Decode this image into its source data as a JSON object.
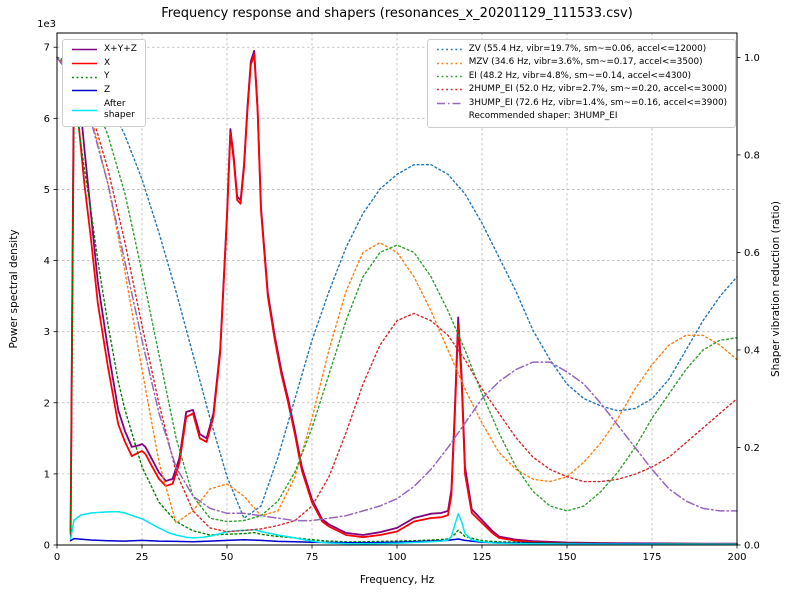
{
  "chart_data": {
    "type": "line",
    "title": "Frequency response and shapers (resonances_x_20201129_111533.csv)",
    "xlabel": "Frequency, Hz",
    "x_range": [
      0,
      200
    ],
    "x_ticks": [
      0,
      25,
      50,
      75,
      100,
      125,
      150,
      175,
      200
    ],
    "grid": true,
    "left_axis": {
      "label": "Power spectral density",
      "range": [
        0,
        7200
      ],
      "ticks": [
        0,
        1000,
        2000,
        3000,
        4000,
        5000,
        6000,
        7000
      ],
      "tick_labels": [
        "0",
        "1",
        "2",
        "3",
        "4",
        "5",
        "6",
        "7"
      ],
      "multiplier": "1e3"
    },
    "right_axis": {
      "label": "Shaper vibration reduction (ratio)",
      "range": [
        0,
        1.05
      ],
      "ticks": [
        0,
        0.2,
        0.4,
        0.6,
        0.8,
        1.0
      ],
      "tick_labels": [
        "0.0",
        "0.2",
        "0.4",
        "0.6",
        "0.8",
        "1.0"
      ]
    },
    "psd_series": [
      {
        "name": "X+Y+Z",
        "legend": "X+Y+Z",
        "color": "#800080",
        "style": "solid",
        "width": 1.8,
        "x": [
          4,
          5,
          6,
          8,
          10,
          12,
          15,
          18,
          20,
          22,
          24,
          25,
          26,
          28,
          30,
          32,
          34,
          36,
          38,
          40,
          42,
          44,
          46,
          48,
          50,
          51,
          52,
          53,
          54,
          55,
          56,
          57,
          58,
          59,
          60,
          62,
          64,
          66,
          68,
          70,
          72,
          75,
          78,
          80,
          85,
          90,
          95,
          100,
          105,
          110,
          113,
          115,
          116,
          117,
          118,
          119,
          120,
          122,
          125,
          128,
          130,
          135,
          140,
          150,
          160,
          170,
          180,
          190,
          200
        ],
        "y": [
          200,
          6950,
          6600,
          5600,
          4650,
          3700,
          2750,
          1900,
          1600,
          1380,
          1400,
          1420,
          1380,
          1200,
          1020,
          900,
          930,
          1220,
          1870,
          1900,
          1560,
          1500,
          1850,
          2750,
          4650,
          5850,
          5450,
          4900,
          4850,
          5350,
          6150,
          6800,
          6950,
          6150,
          4750,
          3550,
          2950,
          2450,
          2050,
          1600,
          1100,
          640,
          360,
          290,
          170,
          140,
          180,
          240,
          380,
          440,
          450,
          480,
          780,
          1900,
          3200,
          2400,
          1100,
          500,
          350,
          200,
          120,
          75,
          55,
          35,
          28,
          24,
          22,
          20,
          20
        ]
      },
      {
        "name": "X",
        "legend": "X",
        "color": "#ff0000",
        "style": "solid",
        "width": 1.8,
        "x": [
          4,
          5,
          6,
          8,
          10,
          12,
          15,
          18,
          20,
          22,
          24,
          25,
          26,
          28,
          30,
          32,
          34,
          36,
          38,
          40,
          42,
          44,
          46,
          48,
          50,
          51,
          52,
          53,
          54,
          55,
          56,
          57,
          58,
          59,
          60,
          62,
          64,
          66,
          68,
          70,
          72,
          75,
          78,
          80,
          85,
          90,
          95,
          100,
          105,
          110,
          113,
          115,
          116,
          117,
          118,
          119,
          120,
          122,
          125,
          128,
          130,
          135,
          140,
          150,
          160,
          170,
          180,
          190,
          200
        ],
        "y": [
          150,
          6500,
          6100,
          5100,
          4300,
          3400,
          2500,
          1700,
          1450,
          1250,
          1300,
          1320,
          1280,
          1100,
          930,
          830,
          860,
          1150,
          1800,
          1850,
          1500,
          1450,
          1800,
          2700,
          4600,
          5800,
          5400,
          4850,
          4800,
          5300,
          6100,
          6750,
          6900,
          6100,
          4700,
          3500,
          2900,
          2400,
          2000,
          1550,
          1050,
          600,
          330,
          260,
          140,
          110,
          140,
          190,
          330,
          380,
          390,
          420,
          700,
          1800,
          3100,
          2300,
          1000,
          450,
          310,
          170,
          100,
          60,
          40,
          25,
          18,
          14,
          12,
          10,
          10
        ]
      },
      {
        "name": "Y",
        "legend": "Y",
        "color": "#008000",
        "style": "dotted",
        "width": 1.4,
        "x": [
          4,
          5,
          6,
          8,
          10,
          12,
          15,
          18,
          20,
          25,
          30,
          35,
          40,
          45,
          50,
          55,
          58,
          60,
          65,
          70,
          75,
          80,
          85,
          90,
          95,
          100,
          105,
          110,
          115,
          117,
          118,
          120,
          125,
          130,
          140,
          150,
          160,
          170,
          180,
          190,
          200
        ],
        "y": [
          120,
          6300,
          6000,
          5300,
          4700,
          4000,
          3100,
          2300,
          1900,
          1100,
          600,
          330,
          200,
          140,
          150,
          160,
          175,
          150,
          120,
          100,
          75,
          55,
          45,
          45,
          50,
          55,
          60,
          70,
          85,
          150,
          210,
          120,
          60,
          45,
          35,
          28,
          22,
          20,
          18,
          16,
          15
        ]
      },
      {
        "name": "Z",
        "legend": "Z",
        "color": "#0000cc",
        "style": "solid",
        "width": 1.5,
        "x": [
          4,
          5,
          10,
          15,
          20,
          25,
          30,
          35,
          40,
          45,
          50,
          55,
          60,
          65,
          70,
          75,
          80,
          90,
          100,
          110,
          115,
          118,
          120,
          125,
          130,
          140,
          150,
          160,
          170,
          180,
          190,
          200
        ],
        "y": [
          60,
          90,
          70,
          60,
          55,
          65,
          55,
          50,
          45,
          55,
          65,
          75,
          65,
          50,
          45,
          40,
          35,
          30,
          40,
          55,
          65,
          85,
          65,
          40,
          30,
          25,
          20,
          18,
          15,
          12,
          10,
          10
        ]
      },
      {
        "name": "After shaper",
        "legend": "After\nshaper",
        "color": "#00e5ee",
        "style": "solid",
        "width": 1.5,
        "x": [
          4,
          5,
          7,
          10,
          13,
          15,
          18,
          20,
          23,
          25,
          28,
          30,
          33,
          35,
          38,
          40,
          43,
          45,
          48,
          50,
          53,
          55,
          58,
          60,
          63,
          65,
          68,
          70,
          73,
          75,
          78,
          80,
          85,
          90,
          95,
          100,
          105,
          110,
          113,
          115,
          116,
          117,
          118,
          119,
          120,
          122,
          125,
          128,
          130,
          135,
          140,
          150,
          160,
          170,
          180,
          190,
          200
        ],
        "y": [
          80,
          350,
          420,
          450,
          460,
          465,
          470,
          450,
          400,
          370,
          290,
          240,
          170,
          140,
          110,
          100,
          110,
          125,
          160,
          185,
          200,
          205,
          215,
          190,
          160,
          140,
          115,
          100,
          70,
          55,
          35,
          28,
          20,
          18,
          20,
          25,
          35,
          45,
          55,
          70,
          120,
          280,
          440,
          330,
          160,
          70,
          45,
          30,
          25,
          20,
          18,
          14,
          12,
          10,
          10,
          10,
          10
        ]
      }
    ],
    "shaper_x": [
      0,
      5,
      10,
      15,
      20,
      25,
      30,
      35,
      40,
      45,
      50,
      55,
      60,
      65,
      70,
      75,
      80,
      85,
      90,
      95,
      100,
      105,
      110,
      115,
      120,
      125,
      130,
      135,
      140,
      145,
      150,
      155,
      160,
      165,
      170,
      175,
      180,
      185,
      190,
      195,
      200
    ],
    "shaper_series": [
      {
        "name": "ZV",
        "label": "ZV (55.4 Hz, vibr=19.7%, sm~=0.06, accel<=12000)",
        "color": "#1f77b4",
        "style": "dotted",
        "width": 1.4,
        "y": [
          1.0,
          0.99,
          0.96,
          0.91,
          0.84,
          0.75,
          0.64,
          0.52,
          0.39,
          0.26,
          0.14,
          0.055,
          0.08,
          0.18,
          0.3,
          0.42,
          0.52,
          0.61,
          0.68,
          0.73,
          0.76,
          0.78,
          0.78,
          0.76,
          0.72,
          0.66,
          0.59,
          0.52,
          0.44,
          0.38,
          0.33,
          0.3,
          0.285,
          0.275,
          0.28,
          0.3,
          0.34,
          0.4,
          0.46,
          0.51,
          0.55
        ]
      },
      {
        "name": "MZV",
        "label": "MZV (34.6 Hz, vibr=3.6%, sm~=0.17, accel<=3500)",
        "color": "#ff7f0e",
        "style": "dotted",
        "width": 1.4,
        "y": [
          1.0,
          0.97,
          0.88,
          0.74,
          0.56,
          0.36,
          0.17,
          0.045,
          0.07,
          0.115,
          0.125,
          0.1,
          0.06,
          0.07,
          0.14,
          0.26,
          0.4,
          0.52,
          0.6,
          0.62,
          0.6,
          0.55,
          0.48,
          0.4,
          0.32,
          0.25,
          0.19,
          0.155,
          0.135,
          0.13,
          0.14,
          0.17,
          0.21,
          0.26,
          0.32,
          0.37,
          0.41,
          0.43,
          0.43,
          0.41,
          0.38
        ]
      },
      {
        "name": "EI",
        "label": "EI (48.2 Hz, vibr=4.8%, sm~=0.14, accel<=4300)",
        "color": "#2ca02c",
        "style": "dotted",
        "width": 1.4,
        "y": [
          1.0,
          0.98,
          0.93,
          0.84,
          0.72,
          0.56,
          0.39,
          0.22,
          0.1,
          0.055,
          0.048,
          0.05,
          0.06,
          0.09,
          0.15,
          0.24,
          0.35,
          0.46,
          0.55,
          0.6,
          0.615,
          0.6,
          0.55,
          0.48,
          0.4,
          0.31,
          0.23,
          0.16,
          0.11,
          0.08,
          0.07,
          0.08,
          0.11,
          0.15,
          0.2,
          0.26,
          0.31,
          0.36,
          0.4,
          0.42,
          0.425
        ]
      },
      {
        "name": "2HUMP_EI",
        "label": "2HUMP_EI (52.0 Hz, vibr=2.7%, sm~=0.20, accel<=3000)",
        "color": "#d62728",
        "style": "dotted",
        "width": 1.4,
        "y": [
          1.0,
          0.96,
          0.89,
          0.77,
          0.62,
          0.45,
          0.29,
          0.15,
          0.07,
          0.035,
          0.027,
          0.03,
          0.033,
          0.04,
          0.05,
          0.08,
          0.14,
          0.23,
          0.33,
          0.41,
          0.46,
          0.475,
          0.46,
          0.43,
          0.38,
          0.32,
          0.27,
          0.22,
          0.18,
          0.155,
          0.14,
          0.13,
          0.13,
          0.135,
          0.145,
          0.16,
          0.18,
          0.21,
          0.24,
          0.27,
          0.3
        ]
      },
      {
        "name": "3HUMP_EI",
        "label": "3HUMP_EI (72.6 Hz, vibr=1.4%, sm~=0.16, accel<=3900)",
        "color": "#9467bd",
        "style": "dashdot",
        "width": 1.5,
        "y": [
          1.0,
          0.95,
          0.87,
          0.74,
          0.58,
          0.42,
          0.27,
          0.16,
          0.1,
          0.075,
          0.065,
          0.065,
          0.06,
          0.055,
          0.05,
          0.05,
          0.055,
          0.06,
          0.07,
          0.08,
          0.095,
          0.12,
          0.155,
          0.2,
          0.25,
          0.3,
          0.335,
          0.36,
          0.375,
          0.375,
          0.355,
          0.33,
          0.29,
          0.245,
          0.2,
          0.155,
          0.115,
          0.09,
          0.075,
          0.07,
          0.07
        ]
      }
    ],
    "recommendation": "Recommended shaper: 3HUMP_EI"
  }
}
